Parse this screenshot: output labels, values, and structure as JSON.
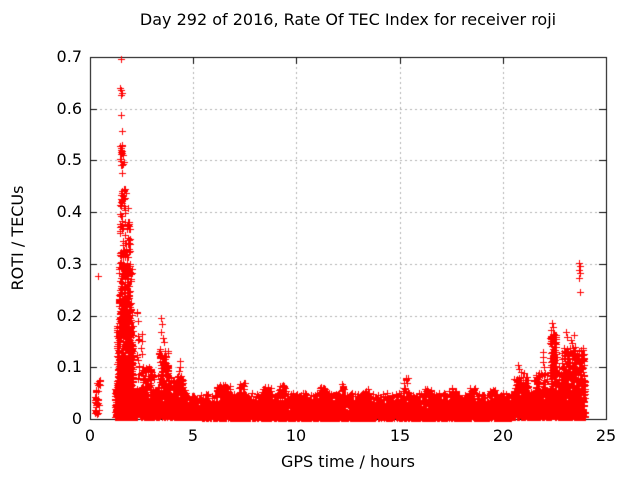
{
  "chart_data": {
    "type": "scatter",
    "title": "Day 292 of 2016, Rate Of TEC Index for receiver roji",
    "xlabel": "GPS time / hours",
    "ylabel": "ROTI / TECUs",
    "xlim": [
      0,
      25
    ],
    "ylim": [
      0,
      0.7
    ],
    "xticks": [
      "0",
      "5",
      "10",
      "15",
      "20",
      "25"
    ],
    "yticks": [
      "0",
      "0.1",
      "0.2",
      "0.3",
      "0.4",
      "0.5",
      "0.6",
      "0.7"
    ],
    "grid": {
      "show": true,
      "style": "dashed",
      "color": "#b0b0b0"
    },
    "frame_color": "#000000",
    "background": "#ffffff",
    "marker": {
      "shape": "plus",
      "color": "#ff0000",
      "size": 7
    },
    "legend": null,
    "representation": "dense scatter of ~8000 ROTI samples encoded as cluster distributions (t=hours range, y=value range, n=points, skew concentrates points toward y[0]) plus explicit outlier points",
    "clusters": [
      {
        "t": [
          0.22,
          0.42
        ],
        "n": 26,
        "y": [
          0.01,
          0.048
        ],
        "skew": 1.2
      },
      {
        "t": [
          0.28,
          0.5
        ],
        "n": 12,
        "y": [
          0.052,
          0.075
        ],
        "skew": 1.0
      },
      {
        "t": [
          1.22,
          2.3
        ],
        "n": 1000,
        "y": [
          0.003,
          0.06
        ],
        "skew": 2.2
      },
      {
        "t": [
          1.3,
          2.1
        ],
        "n": 520,
        "y": [
          0.05,
          0.18
        ],
        "skew": 1.8
      },
      {
        "t": [
          1.38,
          2.02
        ],
        "n": 260,
        "y": [
          0.16,
          0.3
        ],
        "skew": 1.3
      },
      {
        "t": [
          1.42,
          1.96
        ],
        "n": 90,
        "y": [
          0.28,
          0.415
        ],
        "skew": 1.2
      },
      {
        "t": [
          1.5,
          1.74
        ],
        "n": 18,
        "y": [
          0.415,
          0.445
        ],
        "skew": 1.0
      },
      {
        "t": [
          1.43,
          1.64
        ],
        "n": 12,
        "y": [
          0.49,
          0.53
        ],
        "skew": 1.0
      },
      {
        "t": [
          2.28,
          2.4
        ],
        "n": 14,
        "y": [
          0.05,
          0.22
        ],
        "skew": 1.4
      },
      {
        "t": [
          2.4,
          3.28
        ],
        "n": 330,
        "y": [
          0.004,
          0.055
        ],
        "skew": 2.2
      },
      {
        "t": [
          2.44,
          3.1
        ],
        "n": 60,
        "y": [
          0.055,
          0.1
        ],
        "skew": 1.5
      },
      {
        "t": [
          3.28,
          3.95
        ],
        "n": 270,
        "y": [
          0.004,
          0.085
        ],
        "skew": 1.8
      },
      {
        "t": [
          3.35,
          3.8
        ],
        "n": 50,
        "y": [
          0.085,
          0.135
        ],
        "skew": 1.3
      },
      {
        "t": [
          3.95,
          4.65
        ],
        "n": 230,
        "y": [
          0.004,
          0.06
        ],
        "skew": 2.0
      },
      {
        "t": [
          4.0,
          4.55
        ],
        "n": 30,
        "y": [
          0.06,
          0.085
        ],
        "skew": 1.3
      },
      {
        "t": [
          4.65,
          5.4
        ],
        "n": 260,
        "y": [
          0.003,
          0.045
        ],
        "skew": 2.2
      },
      {
        "t": [
          5.4,
          20.4
        ],
        "n": 3300,
        "y": [
          0.002,
          0.032
        ],
        "skew": 2.0
      },
      {
        "t": [
          5.4,
          20.4
        ],
        "n": 950,
        "y": [
          0.028,
          0.05
        ],
        "skew": 1.6
      },
      {
        "t": [
          6.15,
          6.8
        ],
        "n": 50,
        "y": [
          0.045,
          0.068
        ],
        "skew": 1.3
      },
      {
        "t": [
          7.2,
          7.5
        ],
        "n": 20,
        "y": [
          0.045,
          0.075
        ],
        "skew": 1.2
      },
      {
        "t": [
          8.35,
          8.75
        ],
        "n": 26,
        "y": [
          0.045,
          0.062
        ],
        "skew": 1.2
      },
      {
        "t": [
          9.15,
          9.5
        ],
        "n": 26,
        "y": [
          0.045,
          0.066
        ],
        "skew": 1.2
      },
      {
        "t": [
          11.1,
          11.45
        ],
        "n": 20,
        "y": [
          0.045,
          0.062
        ],
        "skew": 1.2
      },
      {
        "t": [
          12.15,
          12.32
        ],
        "n": 12,
        "y": [
          0.05,
          0.07
        ],
        "skew": 1.2
      },
      {
        "t": [
          13.3,
          13.55
        ],
        "n": 14,
        "y": [
          0.045,
          0.06
        ],
        "skew": 1.2
      },
      {
        "t": [
          15.1,
          15.4
        ],
        "n": 16,
        "y": [
          0.05,
          0.082
        ],
        "skew": 1.2
      },
      {
        "t": [
          16.2,
          16.55
        ],
        "n": 20,
        "y": [
          0.045,
          0.06
        ],
        "skew": 1.2
      },
      {
        "t": [
          17.4,
          17.75
        ],
        "n": 20,
        "y": [
          0.045,
          0.06
        ],
        "skew": 1.2
      },
      {
        "t": [
          18.35,
          18.65
        ],
        "n": 18,
        "y": [
          0.045,
          0.06
        ],
        "skew": 1.2
      },
      {
        "t": [
          19.35,
          19.65
        ],
        "n": 16,
        "y": [
          0.045,
          0.058
        ],
        "skew": 1.2
      },
      {
        "t": [
          20.4,
          21.35
        ],
        "n": 300,
        "y": [
          0.003,
          0.05
        ],
        "skew": 2.0
      },
      {
        "t": [
          20.55,
          21.25
        ],
        "n": 60,
        "y": [
          0.05,
          0.085
        ],
        "skew": 1.4
      },
      {
        "t": [
          21.35,
          22.25
        ],
        "n": 280,
        "y": [
          0.003,
          0.055
        ],
        "skew": 2.0
      },
      {
        "t": [
          21.5,
          22.2
        ],
        "n": 50,
        "y": [
          0.05,
          0.09
        ],
        "skew": 1.4
      },
      {
        "t": [
          22.25,
          22.7
        ],
        "n": 220,
        "y": [
          0.004,
          0.12
        ],
        "skew": 1.7
      },
      {
        "t": [
          22.3,
          22.6
        ],
        "n": 40,
        "y": [
          0.12,
          0.165
        ],
        "skew": 1.2
      },
      {
        "t": [
          22.7,
          24.0
        ],
        "n": 540,
        "y": [
          0.003,
          0.09
        ],
        "skew": 1.9
      },
      {
        "t": [
          22.85,
          23.95
        ],
        "n": 130,
        "y": [
          0.09,
          0.14
        ],
        "skew": 1.3
      }
    ],
    "outliers": [
      [
        0.4,
        0.277
      ],
      [
        1.52,
        0.696
      ],
      [
        1.47,
        0.641
      ],
      [
        1.5,
        0.636
      ],
      [
        1.53,
        0.63
      ],
      [
        1.49,
        0.626
      ],
      [
        1.51,
        0.588
      ],
      [
        1.55,
        0.556
      ],
      [
        1.46,
        0.527
      ],
      [
        1.5,
        0.521
      ],
      [
        1.48,
        0.512
      ],
      [
        1.44,
        0.503
      ],
      [
        1.52,
        0.498
      ],
      [
        1.54,
        0.476
      ],
      [
        2.5,
        0.165
      ],
      [
        2.51,
        0.15
      ],
      [
        2.49,
        0.138
      ],
      [
        2.5,
        0.125
      ],
      [
        3.45,
        0.196
      ],
      [
        3.47,
        0.183
      ],
      [
        3.42,
        0.168
      ],
      [
        3.52,
        0.157
      ],
      [
        3.58,
        0.148
      ],
      [
        4.35,
        0.112
      ],
      [
        4.36,
        0.1
      ],
      [
        4.33,
        0.092
      ],
      [
        20.75,
        0.104
      ],
      [
        20.78,
        0.096
      ],
      [
        20.9,
        0.09
      ],
      [
        21.05,
        0.088
      ],
      [
        21.95,
        0.13
      ],
      [
        21.97,
        0.12
      ],
      [
        21.93,
        0.11
      ],
      [
        22.0,
        0.1
      ],
      [
        22.38,
        0.186
      ],
      [
        22.42,
        0.178
      ],
      [
        22.35,
        0.172
      ],
      [
        23.05,
        0.168
      ],
      [
        23.1,
        0.158
      ],
      [
        23.3,
        0.152
      ],
      [
        23.35,
        0.147
      ],
      [
        23.45,
        0.162
      ],
      [
        23.68,
        0.302
      ],
      [
        23.72,
        0.296
      ],
      [
        23.7,
        0.288
      ],
      [
        23.74,
        0.282
      ],
      [
        23.69,
        0.272
      ],
      [
        23.73,
        0.246
      ]
    ]
  }
}
